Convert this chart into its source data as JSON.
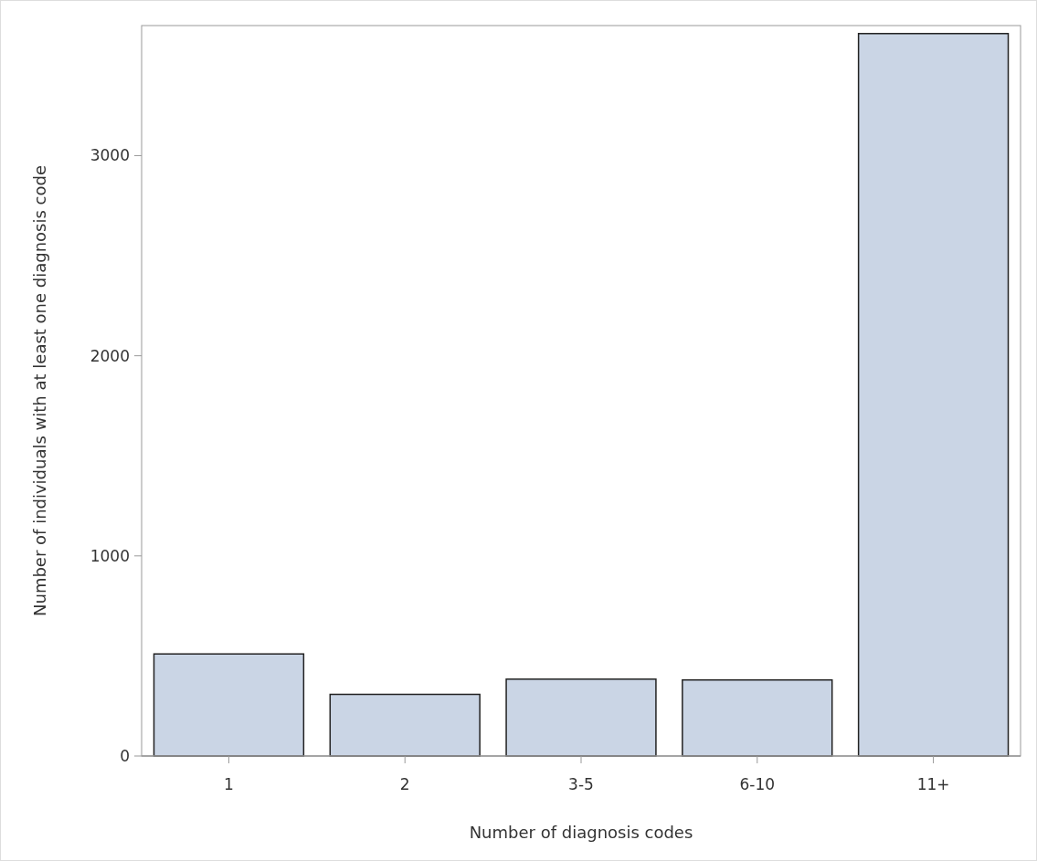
{
  "chart_data": {
    "type": "bar",
    "xlabel": "Number of diagnosis codes",
    "ylabel": "Number of individuals with at least one diagnosis code",
    "categories": [
      "1",
      "2",
      "3-5",
      "6-10",
      "11+"
    ],
    "values": [
      510,
      308,
      384,
      380,
      3610
    ],
    "color": "#cad5e5",
    "ylim": [
      0,
      3650
    ],
    "yticks": [
      0,
      1000,
      2000,
      3000
    ],
    "grid": false
  }
}
